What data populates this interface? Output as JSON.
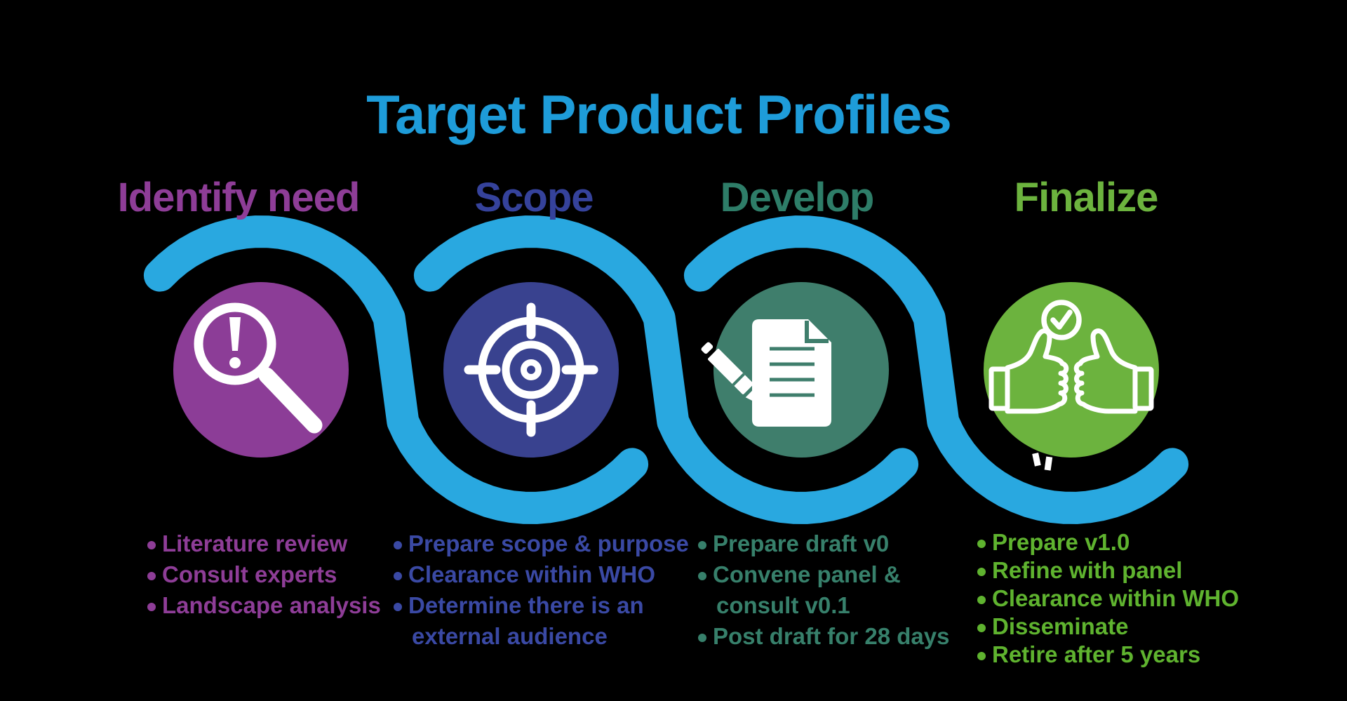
{
  "title": {
    "text": "Target Product Profiles",
    "color": "#1E9CD9"
  },
  "ribbon_color": "#29A8E0",
  "stages": [
    {
      "id": "identify-need",
      "label": "Identify need",
      "heading_color": "#8E3D97",
      "circle_color": "#8C3D97",
      "icon": "magnifier-alert-icon",
      "items": [
        {
          "text": "Literature review",
          "continuation": false
        },
        {
          "text": "Consult experts",
          "continuation": false
        },
        {
          "text": "Landscape analysis",
          "continuation": false
        }
      ]
    },
    {
      "id": "scope",
      "label": "Scope",
      "heading_color": "#35429B",
      "circle_color": "#39428F",
      "icon": "target-icon",
      "items": [
        {
          "text": "Prepare scope & purpose",
          "continuation": false
        },
        {
          "text": "Clearance within WHO",
          "continuation": false
        },
        {
          "text": "Determine there is an",
          "continuation": false
        },
        {
          "text": "external audience",
          "continuation": true
        }
      ]
    },
    {
      "id": "develop",
      "label": "Develop",
      "heading_color": "#2E7D68",
      "circle_color": "#3F7E6C",
      "icon": "document-pen-icon",
      "items": [
        {
          "text": "Prepare draft v0",
          "continuation": false
        },
        {
          "text": "Convene panel &",
          "continuation": false
        },
        {
          "text": "consult v0.1",
          "continuation": true
        },
        {
          "text": "Post draft for 28 days",
          "continuation": false
        }
      ]
    },
    {
      "id": "finalize",
      "label": "Finalize",
      "heading_color": "#6CB33E",
      "circle_color": "#6CB33E",
      "icon": "thumbs-up-check-icon",
      "items": [
        {
          "text": "Prepare v1.0",
          "continuation": false
        },
        {
          "text": "Refine with panel",
          "continuation": false
        },
        {
          "text": "Clearance within WHO",
          "continuation": false
        },
        {
          "text": "Disseminate",
          "continuation": false
        },
        {
          "text": "Retire after 5 years",
          "continuation": false
        }
      ]
    }
  ]
}
